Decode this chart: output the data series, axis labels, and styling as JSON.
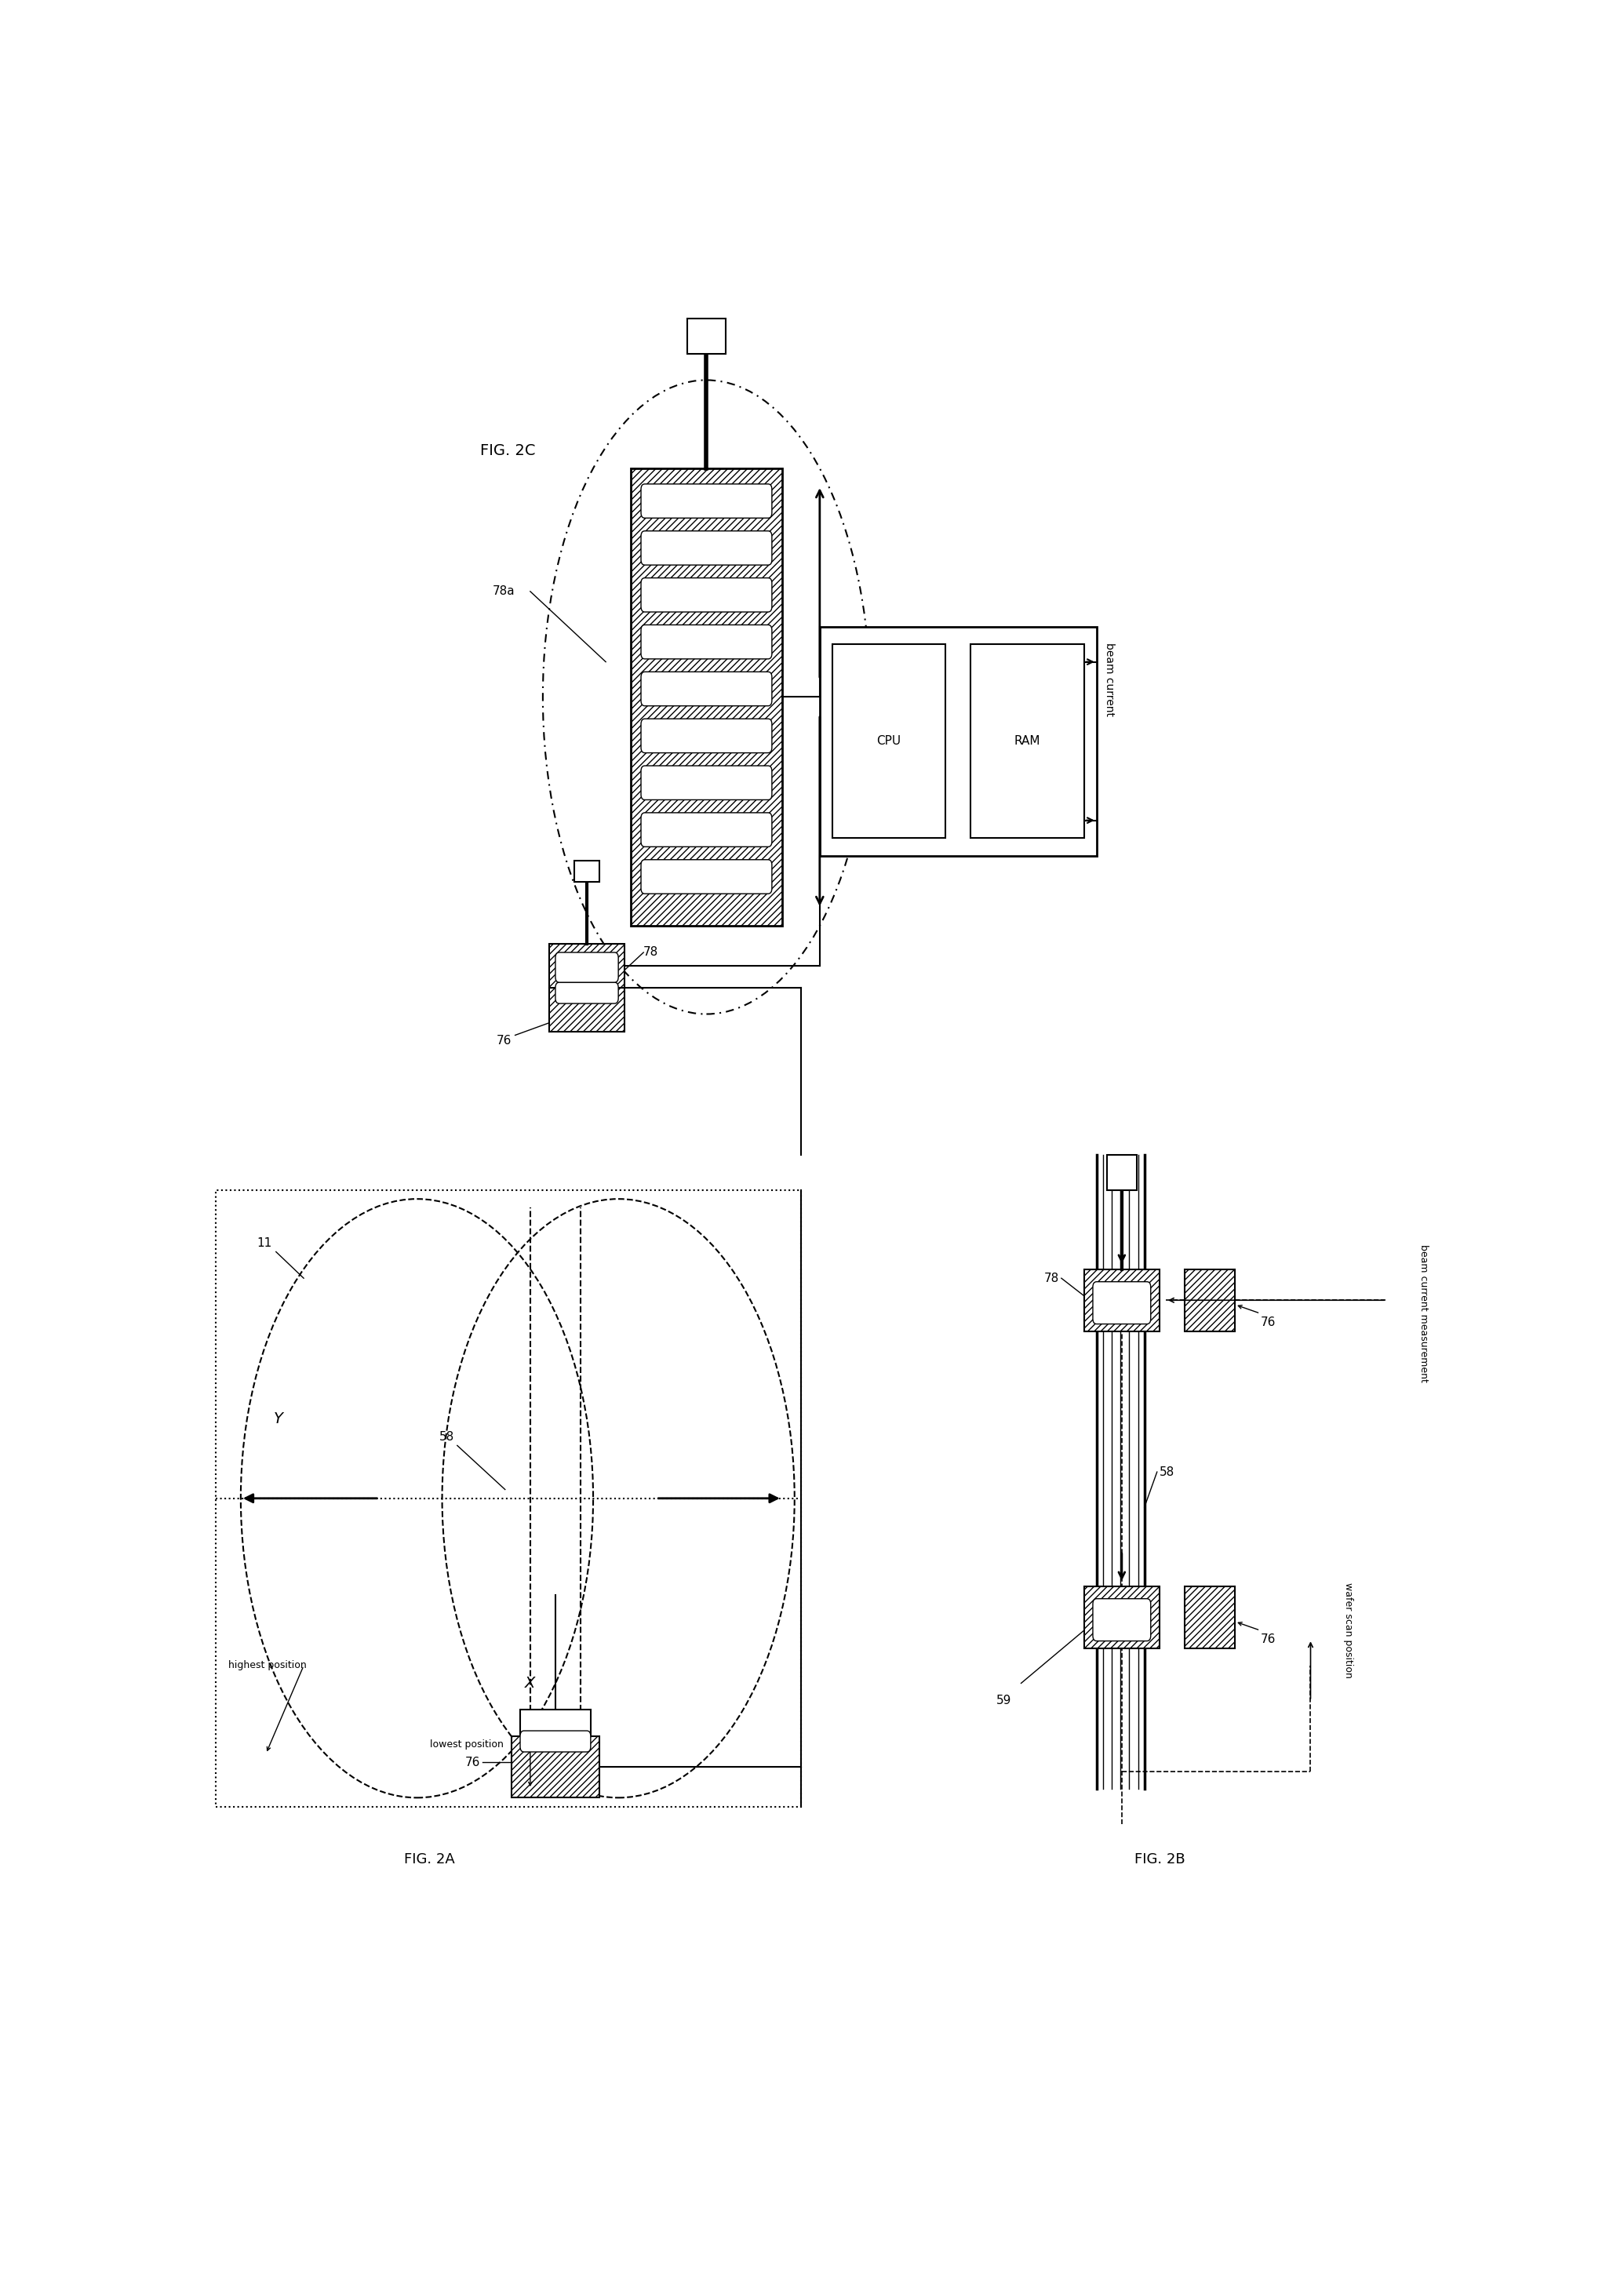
{
  "bg_color": "#ffffff",
  "lc": "#000000",
  "fig_width": 20.7,
  "fig_height": 29.15,
  "labels": {
    "fig_2c": "FIG. 2C",
    "fig_2a": "FIG. 2A",
    "fig_2b": "FIG. 2B",
    "78a": "78a",
    "78_2c": "78",
    "76_2c": "76",
    "78_2b": "78",
    "76_2b_top": "76",
    "76_2b_bot": "76",
    "58_2a": "58",
    "58_2b": "58",
    "59": "59",
    "11": "11",
    "Y": "Y",
    "X": "X",
    "cpu": "CPU",
    "ram": "RAM",
    "beam_current": "beam current",
    "beam_current_meas": "beam current measurement",
    "highest_pos": "highest position",
    "lowest_pos": "lowest position",
    "wafer_scan_pos": "wafer scan position"
  }
}
